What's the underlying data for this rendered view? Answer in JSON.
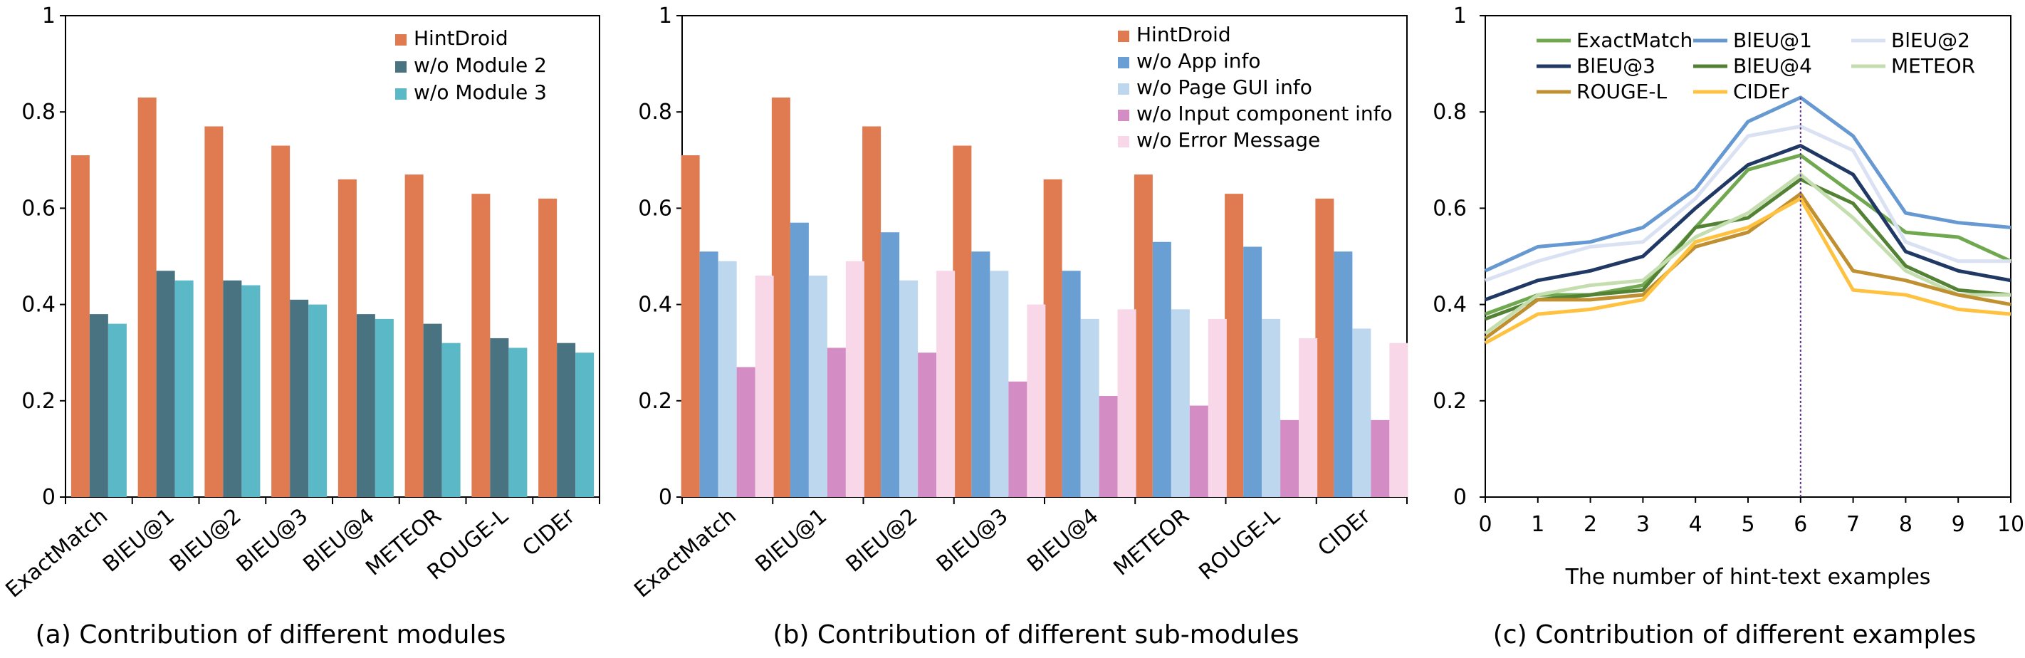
{
  "chart_data": [
    {
      "type": "bar",
      "caption": "(a) Contribution of different modules",
      "categories": [
        "ExactMatch",
        "BlEU@1",
        "BlEU@2",
        "BlEU@3",
        "BlEU@4",
        "METEOR",
        "ROUGE-L",
        "CIDEr"
      ],
      "ylim": [
        0,
        1
      ],
      "yticks": [
        "0",
        "0.2",
        "0.4",
        "0.6",
        "0.8",
        "1"
      ],
      "series": [
        {
          "name": "HintDroid",
          "color": "#E07A50",
          "values": [
            0.71,
            0.83,
            0.77,
            0.73,
            0.66,
            0.67,
            0.63,
            0.62
          ]
        },
        {
          "name": "w/o Module 2",
          "color": "#4A7382",
          "values": [
            0.38,
            0.47,
            0.45,
            0.41,
            0.38,
            0.36,
            0.33,
            0.32
          ]
        },
        {
          "name": "w/o Module 3",
          "color": "#5BB8C6",
          "values": [
            0.36,
            0.45,
            0.44,
            0.4,
            0.37,
            0.32,
            0.31,
            0.3
          ]
        }
      ]
    },
    {
      "type": "bar",
      "caption": "(b) Contribution of different sub-modules",
      "categories": [
        "ExactMatch",
        "BlEU@1",
        "BlEU@2",
        "BlEU@3",
        "BlEU@4",
        "METEOR",
        "ROUGE-L",
        "CIDEr"
      ],
      "ylim": [
        0,
        1
      ],
      "yticks": [
        "0",
        "0.2",
        "0.4",
        "0.6",
        "0.8",
        "1"
      ],
      "series": [
        {
          "name": "HintDroid",
          "color": "#E07A50",
          "values": [
            0.71,
            0.83,
            0.77,
            0.73,
            0.66,
            0.67,
            0.63,
            0.62
          ]
        },
        {
          "name": "w/o App info",
          "color": "#6A9FD4",
          "values": [
            0.51,
            0.57,
            0.55,
            0.51,
            0.47,
            0.53,
            0.52,
            0.51
          ]
        },
        {
          "name": "w/o Page GUI info",
          "color": "#BDD7EE",
          "values": [
            0.49,
            0.46,
            0.45,
            0.47,
            0.37,
            0.39,
            0.37,
            0.35
          ]
        },
        {
          "name": "w/o Input component info",
          "color": "#D48CC4",
          "values": [
            0.27,
            0.31,
            0.3,
            0.24,
            0.21,
            0.19,
            0.16,
            0.16
          ]
        },
        {
          "name": "w/o Error Message",
          "color": "#F8D8E8",
          "values": [
            0.46,
            0.49,
            0.47,
            0.4,
            0.39,
            0.37,
            0.33,
            0.32
          ]
        }
      ]
    },
    {
      "type": "line",
      "caption": "(c) Contribution of different examples",
      "xlabel": "The number of hint-text examples",
      "x": [
        0,
        1,
        2,
        3,
        4,
        5,
        6,
        7,
        8,
        9,
        10
      ],
      "xticks": [
        "0",
        "1",
        "2",
        "3",
        "4",
        "5",
        "6",
        "7",
        "8",
        "9",
        "10"
      ],
      "ylim": [
        0,
        1
      ],
      "yticks": [
        "0",
        "0.2",
        "0.4",
        "0.6",
        "0.8",
        "1"
      ],
      "vline_x": 6,
      "vline_color": "#5A2D82",
      "series": [
        {
          "name": "ExactMatch",
          "color": "#70A84F",
          "values": [
            0.38,
            0.42,
            0.42,
            0.44,
            0.56,
            0.68,
            0.71,
            0.63,
            0.55,
            0.54,
            0.49
          ]
        },
        {
          "name": "BlEU@1",
          "color": "#6699D1",
          "values": [
            0.47,
            0.52,
            0.53,
            0.56,
            0.64,
            0.78,
            0.83,
            0.75,
            0.59,
            0.57,
            0.56
          ]
        },
        {
          "name": "BlEU@2",
          "color": "#D9E1F2",
          "values": [
            0.45,
            0.49,
            0.52,
            0.53,
            0.62,
            0.75,
            0.77,
            0.72,
            0.53,
            0.49,
            0.49
          ]
        },
        {
          "name": "BlEU@3",
          "color": "#1F3864",
          "values": [
            0.41,
            0.45,
            0.47,
            0.5,
            0.6,
            0.69,
            0.73,
            0.67,
            0.51,
            0.47,
            0.45
          ]
        },
        {
          "name": "BlEU@4",
          "color": "#548235",
          "values": [
            0.37,
            0.41,
            0.42,
            0.43,
            0.56,
            0.58,
            0.66,
            0.61,
            0.48,
            0.43,
            0.42
          ]
        },
        {
          "name": "METEOR",
          "color": "#C5DEB0",
          "values": [
            0.34,
            0.42,
            0.44,
            0.45,
            0.54,
            0.59,
            0.67,
            0.58,
            0.47,
            0.42,
            0.42
          ]
        },
        {
          "name": "ROUGE-L",
          "color": "#BF8F30",
          "values": [
            0.33,
            0.41,
            0.41,
            0.42,
            0.52,
            0.55,
            0.63,
            0.47,
            0.45,
            0.42,
            0.4
          ]
        },
        {
          "name": "CIDEr",
          "color": "#FFC240",
          "values": [
            0.32,
            0.38,
            0.39,
            0.41,
            0.53,
            0.56,
            0.62,
            0.43,
            0.42,
            0.39,
            0.38
          ]
        }
      ]
    }
  ]
}
